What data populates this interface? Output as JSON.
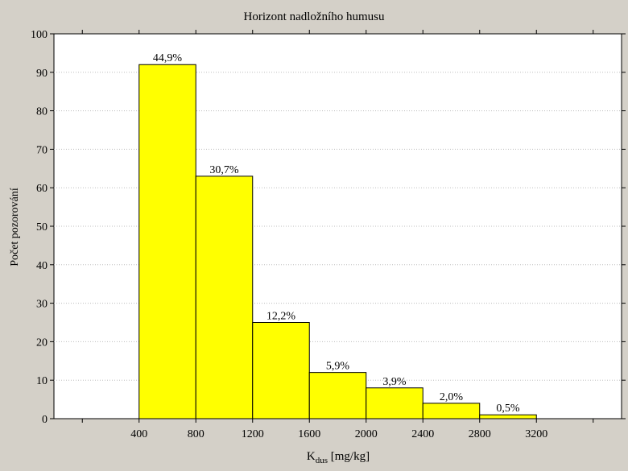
{
  "chart_data": {
    "type": "bar",
    "title": "Horizont nadložního humusu",
    "xlabel_main": "K",
    "xlabel_sub": "dus",
    "xlabel_rest": " [mg/kg]",
    "ylabel": "Počet pozorování",
    "xlim": [
      -200,
      3800
    ],
    "ylim": [
      0,
      100
    ],
    "xticks": [
      400,
      800,
      1200,
      1600,
      2000,
      2400,
      2800,
      3200
    ],
    "xtick_marks": [
      0,
      400,
      800,
      1200,
      1600,
      2000,
      2400,
      2800,
      3200,
      3600
    ],
    "yticks": [
      0,
      10,
      20,
      30,
      40,
      50,
      60,
      70,
      80,
      90,
      100
    ],
    "bins": [
      {
        "from": 400,
        "to": 800,
        "value": 92,
        "label": "44,9%"
      },
      {
        "from": 800,
        "to": 1200,
        "value": 63,
        "label": "30,7%"
      },
      {
        "from": 1200,
        "to": 1600,
        "value": 25,
        "label": "12,2%"
      },
      {
        "from": 1600,
        "to": 2000,
        "value": 12,
        "label": "5,9%"
      },
      {
        "from": 2000,
        "to": 2400,
        "value": 8,
        "label": "3,9%"
      },
      {
        "from": 2400,
        "to": 2800,
        "value": 4,
        "label": "2,0%"
      },
      {
        "from": 2800,
        "to": 3200,
        "value": 1,
        "label": "0,5%"
      }
    ],
    "grid": "horizontal-dotted",
    "colors": {
      "bar_fill": "#ffff00",
      "bar_stroke": "#000000",
      "plot_bg": "#ffffff",
      "frame_bg": "#d4d0c8",
      "grid": "#bdbdbd"
    }
  }
}
